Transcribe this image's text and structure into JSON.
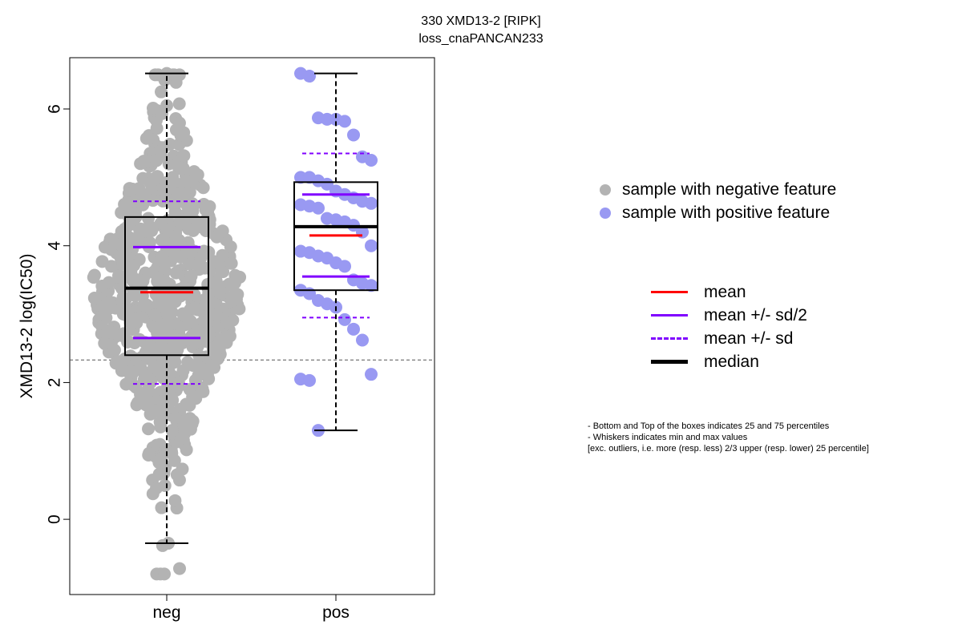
{
  "header": {
    "title_line1": "330 XMD13-2 [RIPK]",
    "title_line2": "loss_cnaPANCAN233"
  },
  "chart_data": {
    "type": "box",
    "categories": [
      "neg",
      "pos"
    ],
    "ylabel": "XMD13-2 log(IC50)",
    "xlabel": "",
    "ylim": [
      -1.1,
      6.75
    ],
    "yticks": [
      0,
      2,
      4,
      6
    ],
    "reference_line_y": 2.33,
    "groups": [
      {
        "name": "neg",
        "color": "#b3b3b3",
        "min": -0.35,
        "q1": 2.4,
        "median": 3.38,
        "q3": 4.42,
        "max": 6.52,
        "mean": 3.32,
        "mean_minus_half_sd": 2.65,
        "mean_plus_half_sd": 3.98,
        "mean_minus_sd": 1.98,
        "mean_plus_sd": 4.65,
        "n_points": 700
      },
      {
        "name": "pos",
        "color": "#9999f2",
        "min": 1.3,
        "q1": 3.35,
        "median": 4.28,
        "q3": 4.93,
        "max": 6.52,
        "mean": 4.15,
        "mean_minus_half_sd": 3.55,
        "mean_plus_half_sd": 4.75,
        "mean_minus_sd": 2.95,
        "mean_plus_sd": 5.35,
        "points": [
          6.52,
          6.48,
          5.87,
          5.85,
          5.85,
          5.82,
          5.62,
          5.3,
          5.25,
          5.0,
          5.0,
          4.95,
          4.9,
          4.8,
          4.75,
          4.7,
          4.65,
          4.62,
          4.6,
          4.58,
          4.55,
          4.4,
          4.38,
          4.35,
          4.3,
          4.2,
          4.0,
          3.92,
          3.9,
          3.85,
          3.82,
          3.75,
          3.7,
          3.5,
          3.45,
          3.42,
          3.35,
          3.3,
          3.2,
          3.15,
          3.1,
          2.92,
          2.78,
          2.62,
          2.12,
          2.05,
          2.03,
          1.3
        ]
      }
    ]
  },
  "legend": {
    "neg_label": "sample with negative feature",
    "pos_label": "sample with positive feature",
    "neg_color": "#b3b3b3",
    "pos_color": "#9999f2"
  },
  "lines_legend": {
    "mean": "mean",
    "half_sd": "mean +/- sd/2",
    "sd": "mean +/- sd",
    "median": "median",
    "mean_color": "#ff0000",
    "sd_color": "#8000ff"
  },
  "notes": {
    "line1": "- Bottom and Top of the boxes indicates 25 and 75 percentiles",
    "line2": "- Whiskers indicates min and max values",
    "line3": "[exc. outliers, i.e. more (resp. less) 2/3 upper (resp. lower) 25 percentile]"
  }
}
